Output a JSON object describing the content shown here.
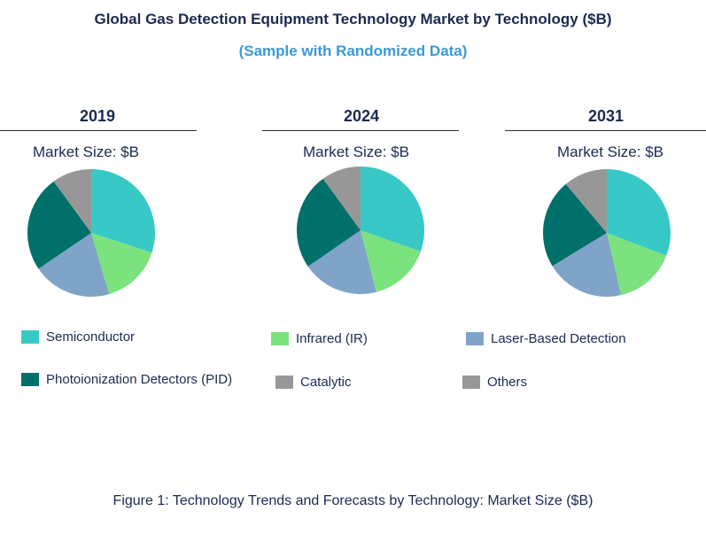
{
  "chart_data": {
    "type": "pie",
    "title": "Global Gas Detection Equipment Technology Market by Technology ($B)",
    "subtitle": "(Sample with Randomized Data)",
    "caption": "Figure 1: Technology Trends and Forecasts by Technology: Market Size ($B)",
    "legend_placement": "bottom",
    "categories": [
      "Semiconductor",
      "Infrared (IR)",
      "Laser-Based Detection",
      "Photoionization Detectors (PID)",
      "Catalytic",
      "Others"
    ],
    "colors": [
      "#38c8c6",
      "#7ce27e",
      "#7fa4c8",
      "#00706a",
      "#979797",
      "#979797"
    ],
    "charts": [
      {
        "year": "2019",
        "label": "Market Size: $B",
        "values": [
          30.0,
          15.5,
          20.0,
          24.5,
          0,
          10.0
        ]
      },
      {
        "year": "2024",
        "label": "Market Size: $B",
        "values": [
          30.4,
          15.6,
          19.4,
          24.6,
          0,
          10.0
        ]
      },
      {
        "year": "2031",
        "label": "Market Size: $B",
        "values": [
          30.8,
          15.6,
          19.9,
          22.6,
          0,
          11.1
        ]
      }
    ]
  }
}
